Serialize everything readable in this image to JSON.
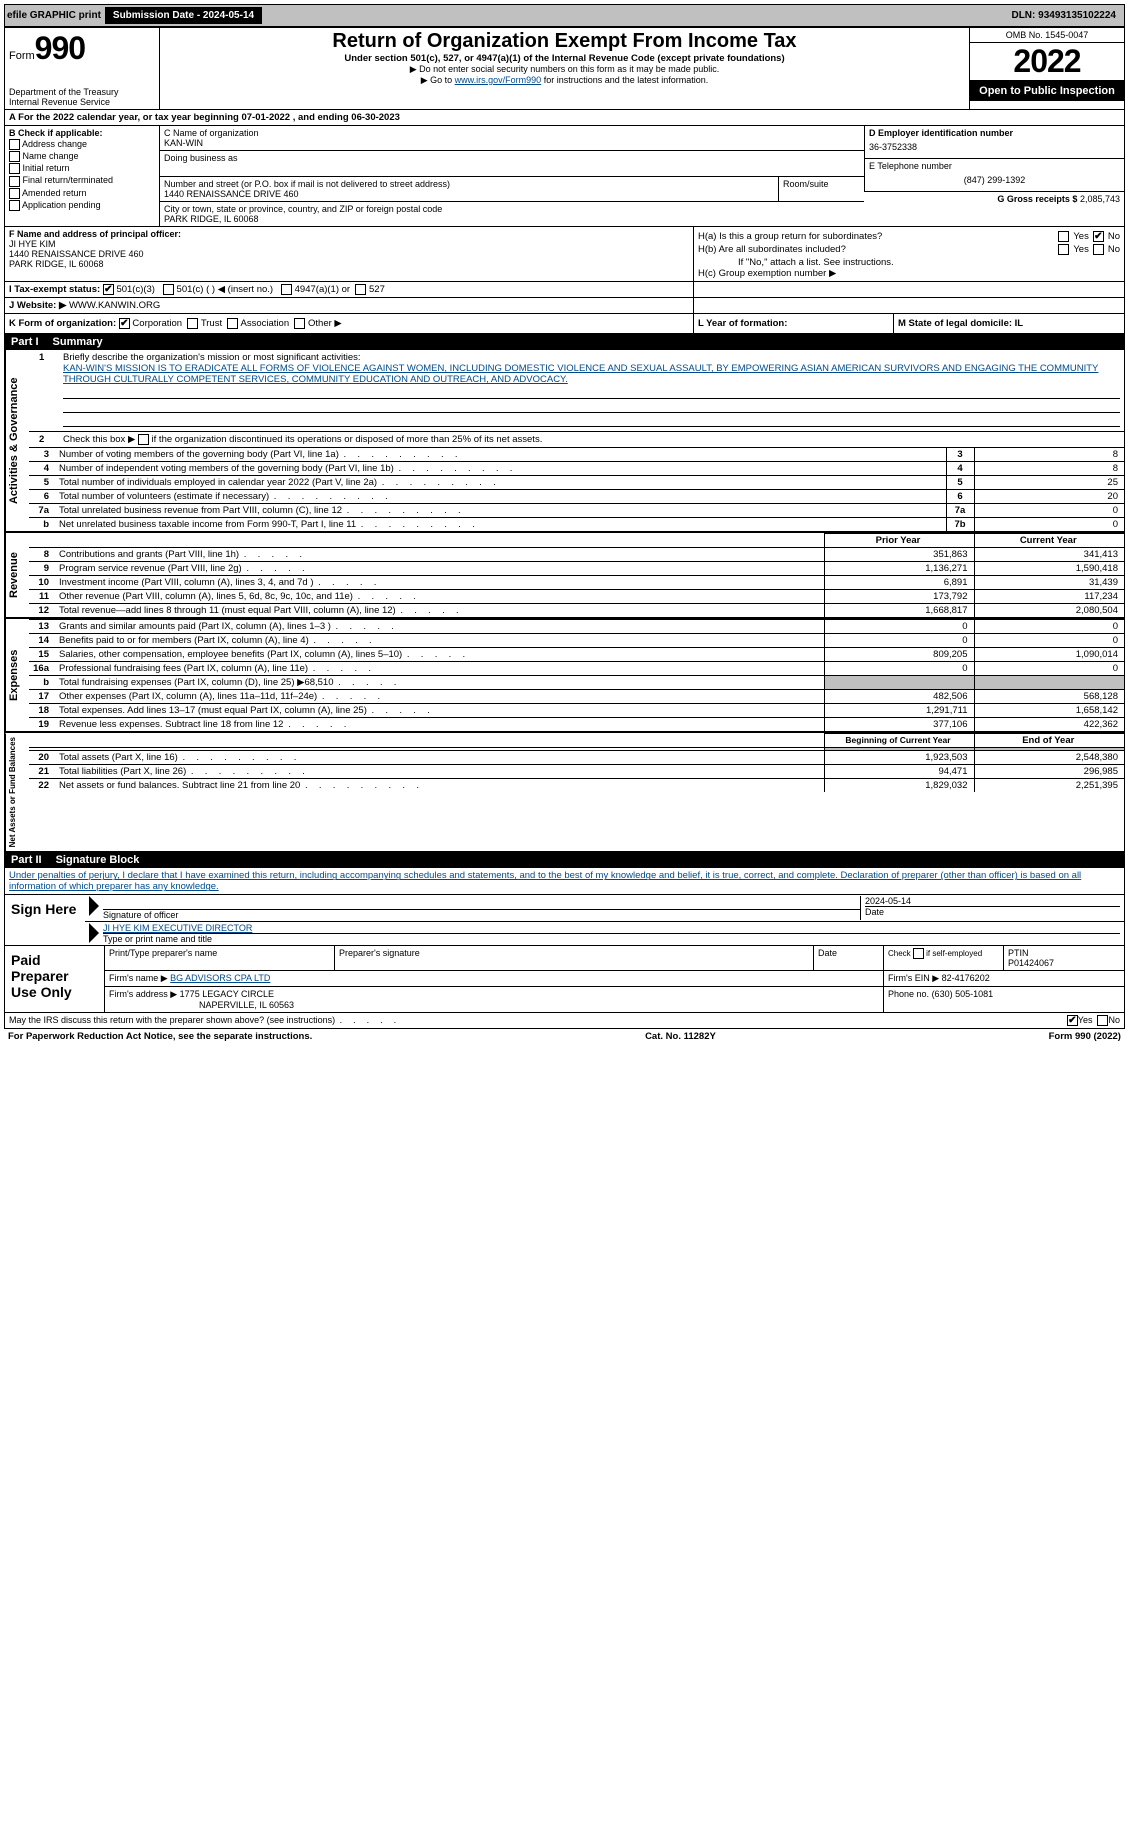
{
  "topbar": {
    "efile": "efile GRAPHIC print",
    "submission_label": "Submission Date - 2024-05-14",
    "dln": "DLN: 93493135102224"
  },
  "header": {
    "form_small": "Form",
    "form_num": "990",
    "dept": "Department of the Treasury",
    "irs": "Internal Revenue Service",
    "title": "Return of Organization Exempt From Income Tax",
    "sub1": "Under section 501(c), 527, or 4947(a)(1) of the Internal Revenue Code (except private foundations)",
    "sub2": "▶ Do not enter social security numbers on this form as it may be made public.",
    "sub3_pre": "▶ Go to ",
    "sub3_link": "www.irs.gov/Form990",
    "sub3_post": " for instructions and the latest information.",
    "omb": "OMB No. 1545-0047",
    "year": "2022",
    "open": "Open to Public Inspection"
  },
  "rowA": "A For the 2022 calendar year, or tax year beginning 07-01-2022    , and ending 06-30-2023",
  "B": {
    "title": "B Check if applicable:",
    "opts": [
      "Address change",
      "Name change",
      "Initial return",
      "Final return/terminated",
      "Amended return",
      "Application pending"
    ]
  },
  "C": {
    "label": "C Name of organization",
    "name": "KAN-WIN",
    "dba_label": "Doing business as",
    "addr_label": "Number and street (or P.O. box if mail is not delivered to street address)",
    "room_label": "Room/suite",
    "addr": "1440 RENAISSANCE DRIVE 460",
    "city_label": "City or town, state or province, country, and ZIP or foreign postal code",
    "city": "PARK RIDGE, IL  60068"
  },
  "D": {
    "label": "D Employer identification number",
    "val": "36-3752338"
  },
  "E": {
    "label": "E Telephone number",
    "val": "(847) 299-1392"
  },
  "G": {
    "label": "G Gross receipts $",
    "val": "2,085,743"
  },
  "F": {
    "label": "F Name and address of principal officer:",
    "name": "JI HYE KIM",
    "addr1": "1440 RENAISSANCE DRIVE 460",
    "addr2": "PARK RIDGE, IL  60068"
  },
  "H": {
    "a": "H(a)  Is this a group return for subordinates?",
    "b": "H(b)  Are all subordinates included?",
    "b_note": "If \"No,\" attach a list. See instructions.",
    "c": "H(c)  Group exemption number ▶",
    "yes": "Yes",
    "no": "No"
  },
  "I": {
    "label": "I   Tax-exempt status:",
    "o1": "501(c)(3)",
    "o2": "501(c) (  ) ◀ (insert no.)",
    "o3": "4947(a)(1) or",
    "o4": "527"
  },
  "J": {
    "label": "J   Website: ▶",
    "val": "WWW.KANWIN.ORG"
  },
  "K": {
    "label": "K Form of organization:",
    "o1": "Corporation",
    "o2": "Trust",
    "o3": "Association",
    "o4": "Other ▶"
  },
  "L": {
    "label": "L Year of formation:",
    "val": ""
  },
  "M": {
    "label": "M State of legal domicile: IL"
  },
  "part1": {
    "header_num": "Part I",
    "header_title": "Summary",
    "mission_label": "Briefly describe the organization's mission or most significant activities:",
    "mission": "KAN-WIN'S MISSION IS TO ERADICATE ALL FORMS OF VIOLENCE AGAINST WOMEN, INCLUDING DOMESTIC VIOLENCE AND SEXUAL ASSAULT, BY EMPOWERING ASIAN AMERICAN SURVIVORS AND ENGAGING THE COMMUNITY THROUGH CULTURALLY COMPETENT SERVICES, COMMUNITY EDUCATION AND OUTREACH, AND ADVOCACY.",
    "line2": "Check this box ▶      if the organization discontinued its operations or disposed of more than 25% of its net assets.",
    "vert1": "Activities & Governance",
    "vert2": "Revenue",
    "vert3": "Expenses",
    "vert4": "Net Assets or Fund Balances",
    "lines_ag": [
      {
        "n": "3",
        "t": "Number of voting members of the governing body (Part VI, line 1a)",
        "b": "3",
        "v": "8"
      },
      {
        "n": "4",
        "t": "Number of independent voting members of the governing body (Part VI, line 1b)",
        "b": "4",
        "v": "8"
      },
      {
        "n": "5",
        "t": "Total number of individuals employed in calendar year 2022 (Part V, line 2a)",
        "b": "5",
        "v": "25"
      },
      {
        "n": "6",
        "t": "Total number of volunteers (estimate if necessary)",
        "b": "6",
        "v": "20"
      },
      {
        "n": "7a",
        "t": "Total unrelated business revenue from Part VIII, column (C), line 12",
        "b": "7a",
        "v": "0"
      },
      {
        "n": "b",
        "t": "Net unrelated business taxable income from Form 990-T, Part I, line 11",
        "b": "7b",
        "v": "0"
      }
    ],
    "col_prior": "Prior Year",
    "col_current": "Current Year",
    "lines_rev": [
      {
        "n": "8",
        "t": "Contributions and grants (Part VIII, line 1h)",
        "p": "351,863",
        "c": "341,413"
      },
      {
        "n": "9",
        "t": "Program service revenue (Part VIII, line 2g)",
        "p": "1,136,271",
        "c": "1,590,418"
      },
      {
        "n": "10",
        "t": "Investment income (Part VIII, column (A), lines 3, 4, and 7d )",
        "p": "6,891",
        "c": "31,439"
      },
      {
        "n": "11",
        "t": "Other revenue (Part VIII, column (A), lines 5, 6d, 8c, 9c, 10c, and 11e)",
        "p": "173,792",
        "c": "117,234"
      },
      {
        "n": "12",
        "t": "Total revenue—add lines 8 through 11 (must equal Part VIII, column (A), line 12)",
        "p": "1,668,817",
        "c": "2,080,504"
      }
    ],
    "lines_exp": [
      {
        "n": "13",
        "t": "Grants and similar amounts paid (Part IX, column (A), lines 1–3 )",
        "p": "0",
        "c": "0"
      },
      {
        "n": "14",
        "t": "Benefits paid to or for members (Part IX, column (A), line 4)",
        "p": "0",
        "c": "0"
      },
      {
        "n": "15",
        "t": "Salaries, other compensation, employee benefits (Part IX, column (A), lines 5–10)",
        "p": "809,205",
        "c": "1,090,014"
      },
      {
        "n": "16a",
        "t": "Professional fundraising fees (Part IX, column (A), line 11e)",
        "p": "0",
        "c": "0"
      },
      {
        "n": "b",
        "t": "Total fundraising expenses (Part IX, column (D), line 25) ▶68,510",
        "p": "",
        "c": "",
        "grey": true
      },
      {
        "n": "17",
        "t": "Other expenses (Part IX, column (A), lines 11a–11d, 11f–24e)",
        "p": "482,506",
        "c": "568,128"
      },
      {
        "n": "18",
        "t": "Total expenses. Add lines 13–17 (must equal Part IX, column (A), line 25)",
        "p": "1,291,711",
        "c": "1,658,142"
      },
      {
        "n": "19",
        "t": "Revenue less expenses. Subtract line 18 from line 12",
        "p": "377,106",
        "c": "422,362"
      }
    ],
    "col_begin": "Beginning of Current Year",
    "col_end": "End of Year",
    "lines_na": [
      {
        "n": "20",
        "t": "Total assets (Part X, line 16)",
        "p": "1,923,503",
        "c": "2,548,380"
      },
      {
        "n": "21",
        "t": "Total liabilities (Part X, line 26)",
        "p": "94,471",
        "c": "296,985"
      },
      {
        "n": "22",
        "t": "Net assets or fund balances. Subtract line 21 from line 20",
        "p": "1,829,032",
        "c": "2,251,395"
      }
    ]
  },
  "part2": {
    "header_num": "Part II",
    "header_title": "Signature Block",
    "decl": "Under penalties of perjury, I declare that I have examined this return, including accompanying schedules and statements, and to the best of my knowledge and belief, it is true, correct, and complete. Declaration of preparer (other than officer) is based on all information of which preparer has any knowledge.",
    "sign_here": "Sign Here",
    "sig_officer": "Signature of officer",
    "sig_date": "Date",
    "sig_date_val": "2024-05-14",
    "officer_name": "JI HYE KIM  EXECUTIVE DIRECTOR",
    "type_name": "Type or print name and title",
    "paid": "Paid Preparer Use Only",
    "prep_name_label": "Print/Type preparer's name",
    "prep_sig_label": "Preparer's signature",
    "date_label": "Date",
    "check_self": "Check        if self-employed",
    "ptin_label": "PTIN",
    "ptin": "P01424067",
    "firm_name_label": "Firm's name   ▶",
    "firm_name": "BG ADVISORS CPA LTD",
    "firm_ein_label": "Firm's EIN ▶",
    "firm_ein": "82-4176202",
    "firm_addr_label": "Firm's address ▶",
    "firm_addr1": "1775 LEGACY CIRCLE",
    "firm_addr2": "NAPERVILLE, IL  60563",
    "phone_label": "Phone no.",
    "phone": "(630) 505-1081",
    "may_irs": "May the IRS discuss this return with the preparer shown above? (see instructions)"
  },
  "footer": {
    "pra": "For Paperwork Reduction Act Notice, see the separate instructions.",
    "cat": "Cat. No. 11282Y",
    "form": "Form 990 (2022)"
  }
}
